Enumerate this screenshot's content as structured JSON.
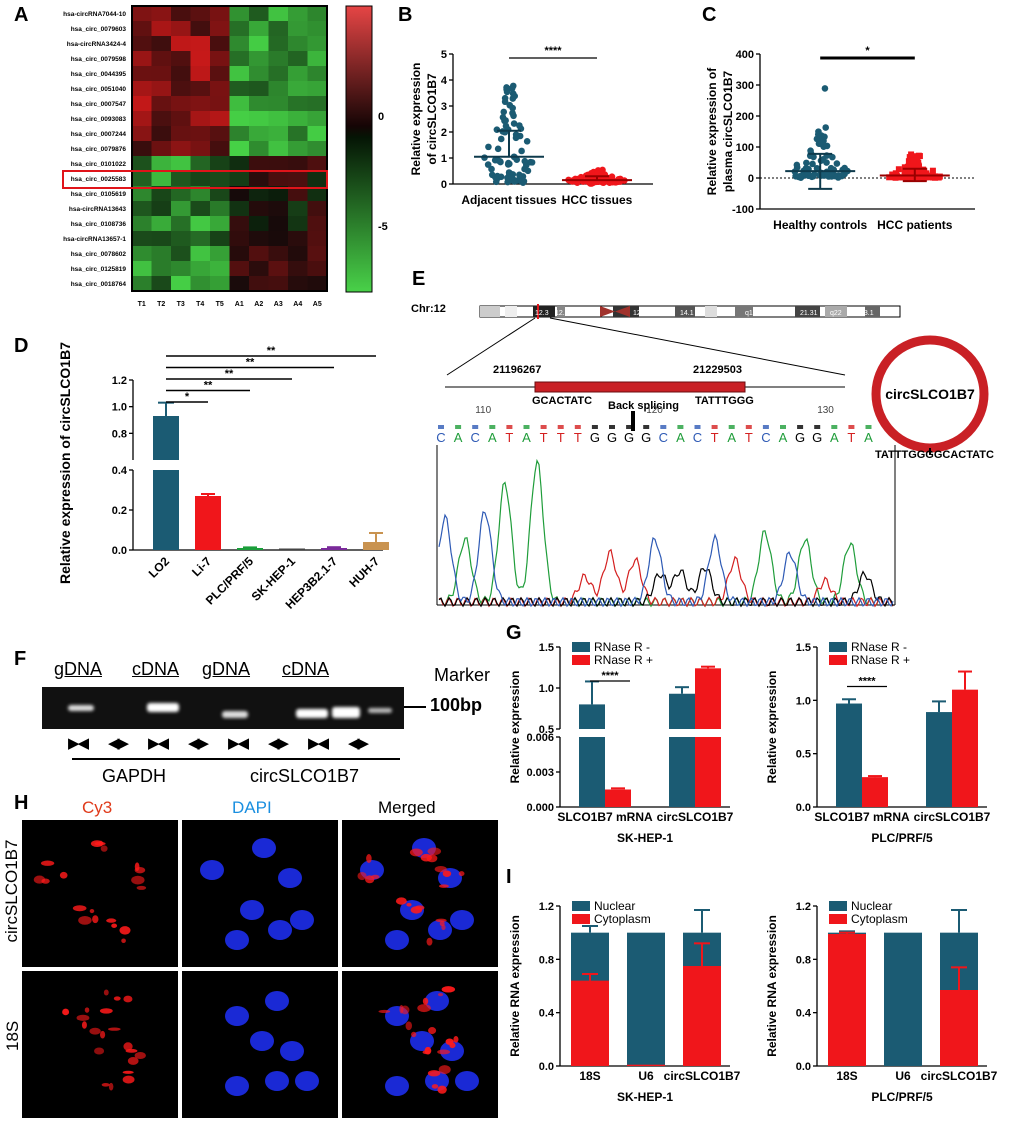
{
  "panels": {
    "A": "A",
    "B": "B",
    "C": "C",
    "D": "D",
    "E": "E",
    "F": "F",
    "G": "G",
    "H": "H",
    "I": "I"
  },
  "colors": {
    "teal": "#1b5b73",
    "red": "#f0161b",
    "dark_red": "#e0141a",
    "gold": "#c99350",
    "purple": "#7a2a9a"
  },
  "heatmap": {
    "rows": [
      "hsa-circRNA7044-10",
      "hsa_circ_0079603",
      "hsa-circRNA3424-4",
      "hsa_circ_0079598",
      "hsa_circ_0044395",
      "hsa_circ_0051040",
      "hsa_circ_0007547",
      "hsa_circ_0093083",
      "hsa_circ_0007244",
      "hsa_circ_0079876",
      "hsa_circ_0101022",
      "hsa_circ_0025583",
      "hsa_circ_0105619",
      "hsa-circRNA13643",
      "hsa_circ_0108736",
      "hsa-circRNA13657-1",
      "hsa_circ_0078602",
      "hsa_circ_0125819",
      "hsa_circ_0018764"
    ],
    "cols": [
      "T1",
      "T2",
      "T3",
      "T4",
      "T5",
      "A1",
      "A2",
      "A3",
      "A4",
      "A5"
    ],
    "colorbar": [
      "0",
      "-5"
    ],
    "highlight": "hsa_circ_0025583"
  },
  "E": {
    "chr": "Chr:12",
    "start": "21196267",
    "end": "21229503",
    "left_seq": "GCACTATC",
    "right_seq": "TATTTGGG",
    "back": "Back splicing",
    "circ": "circSLCO1B7",
    "junction": "TATTTGGGGCACTATC",
    "seq": "CACATATTTGGGGCACTATCAGGATA",
    "pos": [
      "110",
      "120",
      "130"
    ],
    "bands": [
      "12.3",
      "12.1",
      "12q12",
      "14.1",
      "q15",
      "21.31",
      "q22",
      "23.1",
      "23.3"
    ]
  },
  "F": {
    "labels": [
      "gDNA",
      "cDNA",
      "gDNA",
      "cDNA"
    ],
    "marker": "Marker",
    "bp": "100bp",
    "genes": [
      "GAPDH",
      "circSLCO1B7"
    ],
    "arrows": [
      "▶◀",
      "◀▶",
      "▶◀",
      "◀▶",
      "▶◀",
      "◀▶",
      "▶◀",
      "◀▶"
    ]
  },
  "H": {
    "cols": [
      "Cy3",
      "DAPI",
      "Merged"
    ],
    "rows": [
      "circSLCO1B7",
      "18S"
    ]
  },
  "chart_data": [
    {
      "id": "B",
      "type": "scatter",
      "ylabel": "Relative  expression\nof circSLCO1B7",
      "categories": [
        "Adjacent tissues",
        "HCC tissues"
      ],
      "ylim": [
        0,
        5
      ],
      "yticks": [
        "0",
        "1",
        "2",
        "3",
        "4",
        "5"
      ],
      "means": [
        1.05,
        0.15
      ],
      "sd_upper": [
        2.05,
        0.3
      ],
      "sig": "****"
    },
    {
      "id": "C",
      "type": "scatter",
      "ylabel": "Relative expression of\nplasma circSLCO1B7",
      "categories": [
        "Healthy controls",
        "HCC patients"
      ],
      "ylim": [
        -100,
        400
      ],
      "yticks": [
        "-100",
        "0",
        "100",
        "200",
        "300",
        "400"
      ],
      "means": [
        22,
        8
      ],
      "sd_upper": [
        78,
        30
      ],
      "sd_lower": [
        -35,
        -10
      ],
      "sig": "*"
    },
    {
      "id": "D",
      "type": "bar",
      "ylabel": "Relative expression of circSLCO1B7",
      "categories": [
        "LO2",
        "Li-7",
        "PLC/PRF/5",
        "SK-HEP-1",
        "HEP3B2.1-7",
        "HUH-7"
      ],
      "values": [
        0.93,
        0.27,
        0.01,
        0.0,
        0.01,
        0.04
      ],
      "errors": [
        0.1,
        0.01,
        0.003,
        0.0,
        0.004,
        0.045
      ],
      "yticks_lower": [
        "0.0",
        "0.2",
        "0.4"
      ],
      "yticks_upper": [
        "0.8",
        "1.0",
        "1.2"
      ],
      "sig": [
        "*",
        "**",
        "**",
        "**",
        "**"
      ]
    },
    {
      "id": "G1",
      "type": "bar",
      "xlabel": "SK-HEP-1",
      "ylabel": "Relative expression",
      "legend": [
        "RNase R -",
        "RNase R +"
      ],
      "categories": [
        "SLCO1B7 mRNA",
        "circSLCO1B7"
      ],
      "series": [
        {
          "name": "RNase R -",
          "values": [
            0.8,
            0.93
          ]
        },
        {
          "name": "RNase R +",
          "values": [
            0.0015,
            1.24
          ]
        }
      ],
      "yticks_lower": [
        "0.000",
        "0.003",
        "0.006"
      ],
      "yticks_upper": [
        "0.5",
        "1.0",
        "1.5"
      ],
      "sig": "****"
    },
    {
      "id": "G2",
      "type": "bar",
      "xlabel": "PLC/PRF/5",
      "ylabel": "Relative expression",
      "legend": [
        "RNase R -",
        "RNase R +"
      ],
      "categories": [
        "SLCO1B7 mRNA",
        "circSLCO1B7"
      ],
      "series": [
        {
          "name": "RNase R -",
          "values": [
            0.97,
            0.89
          ]
        },
        {
          "name": "RNase R +",
          "values": [
            0.28,
            1.1
          ]
        }
      ],
      "yticks": [
        "0.0",
        "0.5",
        "1.0",
        "1.5"
      ],
      "ylim": [
        0,
        1.5
      ],
      "sig": "****"
    },
    {
      "id": "I1",
      "type": "bar",
      "xlabel": "SK-HEP-1",
      "ylabel": "Relative RNA expression",
      "legend": [
        "Nuclear",
        "Cytoplasm"
      ],
      "categories": [
        "18S",
        "U6",
        "circSLCO1B7"
      ],
      "series": [
        {
          "name": "Nuclear",
          "values": [
            1.0,
            1.0,
            1.0
          ]
        },
        {
          "name": "Cytoplasm",
          "values": [
            0.64,
            0.01,
            0.75
          ]
        }
      ],
      "yticks": [
        "0.0",
        "0.4",
        "0.8",
        "1.2"
      ],
      "ylim": [
        0,
        1.2
      ]
    },
    {
      "id": "I2",
      "type": "bar",
      "xlabel": "PLC/PRF/5",
      "ylabel": "Relative RNA expression",
      "legend": [
        "Nuclear",
        "Cytoplasm"
      ],
      "categories": [
        "18S",
        "U6",
        "circSLCO1B7"
      ],
      "series": [
        {
          "name": "Nuclear",
          "values": [
            1.0,
            1.0,
            1.0
          ]
        },
        {
          "name": "Cytoplasm",
          "values": [
            0.99,
            0.0,
            0.57
          ]
        }
      ],
      "yticks": [
        "0.0",
        "0.4",
        "0.8",
        "1.2"
      ],
      "ylim": [
        0,
        1.2
      ]
    }
  ]
}
